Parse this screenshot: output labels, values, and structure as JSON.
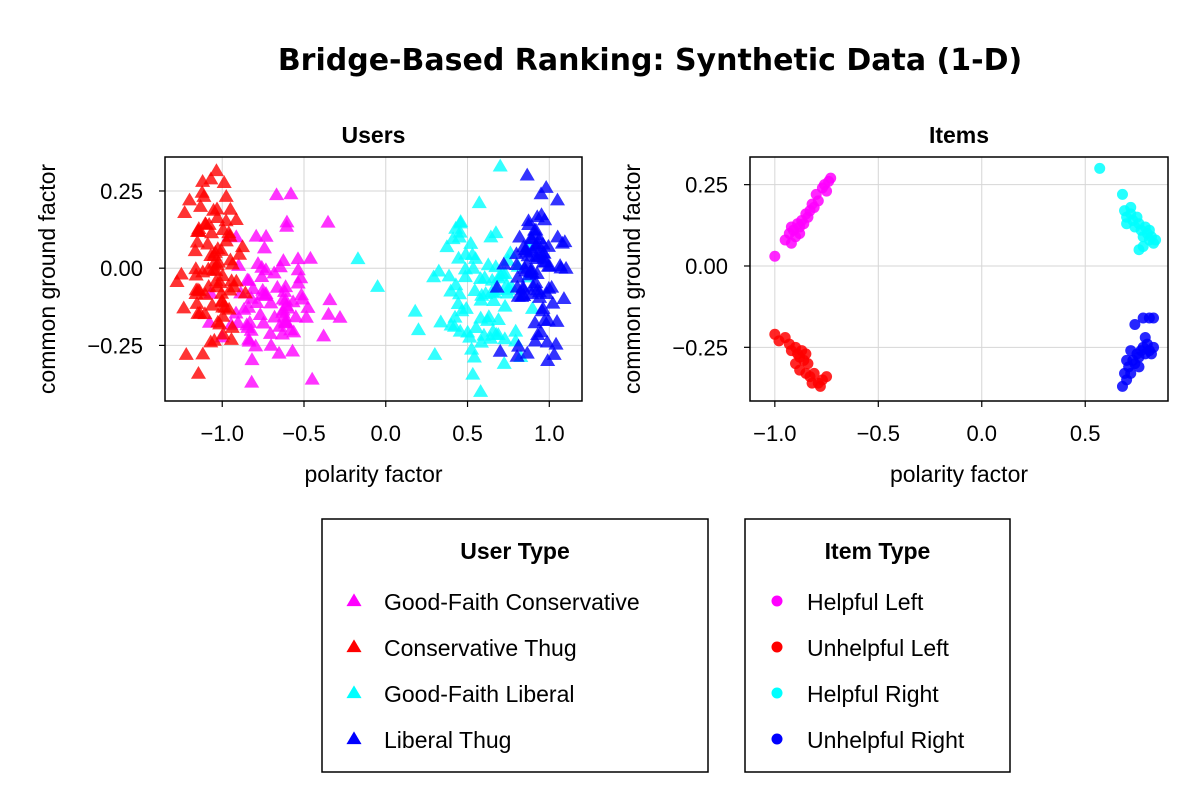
{
  "figure": {
    "title": "Bridge-Based Ranking: Synthetic Data (1-D)"
  },
  "chart_data": [
    {
      "type": "scatter",
      "title": "Users",
      "xlabel": "polarity factor",
      "ylabel": "common ground factor",
      "xlim": [
        -1.35,
        1.2
      ],
      "ylim": [
        -0.43,
        0.36
      ],
      "xticks": [
        -1.0,
        -0.5,
        0.0,
        0.5,
        1.0
      ],
      "xtick_labels": [
        "−1.0",
        "−0.5",
        "0.0",
        "0.5",
        "1.0"
      ],
      "yticks": [
        -0.25,
        0.0,
        0.25
      ],
      "ytick_labels": [
        "−0.25",
        "0.00",
        "0.25"
      ],
      "grid": true,
      "marker": "triangle",
      "series": [
        {
          "name": "Good-Faith Conservative",
          "color": "#ff00ff",
          "cluster": {
            "n": 80,
            "xmean": -0.7,
            "xsd": 0.15,
            "ymean": -0.09,
            "ysd": 0.12,
            "seed": 11
          },
          "points": [
            [
              -0.58,
              0.24
            ],
            [
              -0.45,
              -0.36
            ],
            [
              -0.82,
              -0.37
            ],
            [
              -0.28,
              -0.16
            ],
            [
              -0.35,
              -0.15
            ],
            [
              -0.38,
              -0.22
            ]
          ]
        },
        {
          "name": "Conservative Thug",
          "color": "#ff0000",
          "cluster": {
            "n": 85,
            "xmean": -1.06,
            "xsd": 0.08,
            "ymean": -0.01,
            "ysd": 0.13,
            "seed": 23
          },
          "points": [
            [
              -1.12,
              0.28
            ],
            [
              -1.2,
              0.22
            ],
            [
              -1.22,
              -0.28
            ],
            [
              -1.25,
              -0.02
            ],
            [
              -0.95,
              0.19
            ]
          ]
        },
        {
          "name": "Good-Faith Liberal",
          "color": "#00ffff",
          "cluster": {
            "n": 80,
            "xmean": 0.6,
            "xsd": 0.13,
            "ymean": -0.08,
            "ysd": 0.12,
            "seed": 37
          },
          "points": [
            [
              0.7,
              0.33
            ],
            [
              -0.17,
              0.03
            ],
            [
              -0.05,
              -0.06
            ],
            [
              0.2,
              -0.2
            ],
            [
              0.3,
              -0.28
            ],
            [
              0.58,
              -0.4
            ],
            [
              0.45,
              0.1
            ],
            [
              0.18,
              -0.14
            ]
          ]
        },
        {
          "name": "Liberal Thug",
          "color": "#0000ff",
          "cluster": {
            "n": 85,
            "xmean": 0.92,
            "xsd": 0.09,
            "ymean": 0.0,
            "ysd": 0.12,
            "seed": 53
          },
          "points": [
            [
              0.95,
              0.24
            ],
            [
              1.05,
              0.22
            ],
            [
              1.08,
              0.08
            ],
            [
              1.03,
              -0.28
            ],
            [
              0.99,
              -0.3
            ],
            [
              0.7,
              -0.27
            ]
          ]
        }
      ]
    },
    {
      "type": "scatter",
      "title": "Items",
      "xlabel": "polarity factor",
      "ylabel": "common ground factor",
      "xlim": [
        -1.12,
        0.9
      ],
      "ylim": [
        -0.415,
        0.335
      ],
      "xticks": [
        -1.0,
        -0.5,
        0.0,
        0.5
      ],
      "xtick_labels": [
        "−1.0",
        "−0.5",
        "0.0",
        "0.5"
      ],
      "yticks": [
        -0.25,
        0.0,
        0.25
      ],
      "ytick_labels": [
        "−0.25",
        "0.00",
        "0.25"
      ],
      "grid": true,
      "marker": "circle",
      "series": [
        {
          "name": "Helpful Left",
          "color": "#ff00ff",
          "points": [
            [
              -1.0,
              0.03
            ],
            [
              -0.95,
              0.08
            ],
            [
              -0.93,
              0.1
            ],
            [
              -0.92,
              0.12
            ],
            [
              -0.91,
              0.11
            ],
            [
              -0.9,
              0.09
            ],
            [
              -0.89,
              0.13
            ],
            [
              -0.88,
              0.12
            ],
            [
              -0.87,
              0.14
            ],
            [
              -0.86,
              0.13
            ],
            [
              -0.85,
              0.16
            ],
            [
              -0.84,
              0.15
            ],
            [
              -0.83,
              0.17
            ],
            [
              -0.82,
              0.19
            ],
            [
              -0.81,
              0.18
            ],
            [
              -0.8,
              0.22
            ],
            [
              -0.79,
              0.2
            ],
            [
              -0.77,
              0.24
            ],
            [
              -0.76,
              0.25
            ],
            [
              -0.74,
              0.26
            ],
            [
              -0.73,
              0.27
            ],
            [
              -0.75,
              0.23
            ],
            [
              -0.92,
              0.07
            ],
            [
              -0.88,
              0.1
            ]
          ]
        },
        {
          "name": "Unhelpful Left",
          "color": "#ff0000",
          "points": [
            [
              -1.0,
              -0.21
            ],
            [
              -0.98,
              -0.23
            ],
            [
              -0.95,
              -0.22
            ],
            [
              -0.93,
              -0.24
            ],
            [
              -0.92,
              -0.26
            ],
            [
              -0.9,
              -0.25
            ],
            [
              -0.89,
              -0.27
            ],
            [
              -0.88,
              -0.28
            ],
            [
              -0.87,
              -0.26
            ],
            [
              -0.86,
              -0.29
            ],
            [
              -0.85,
              -0.27
            ],
            [
              -0.84,
              -0.3
            ],
            [
              -0.88,
              -0.32
            ],
            [
              -0.85,
              -0.33
            ],
            [
              -0.83,
              -0.34
            ],
            [
              -0.81,
              -0.33
            ],
            [
              -0.79,
              -0.36
            ],
            [
              -0.77,
              -0.35
            ],
            [
              -0.75,
              -0.34
            ],
            [
              -0.78,
              -0.37
            ],
            [
              -0.82,
              -0.36
            ],
            [
              -0.9,
              -0.3
            ]
          ]
        },
        {
          "name": "Helpful Right",
          "color": "#00ffff",
          "points": [
            [
              0.57,
              0.3
            ],
            [
              0.68,
              0.22
            ],
            [
              0.69,
              0.17
            ],
            [
              0.7,
              0.15
            ],
            [
              0.72,
              0.16
            ],
            [
              0.73,
              0.14
            ],
            [
              0.74,
              0.12
            ],
            [
              0.75,
              0.15
            ],
            [
              0.76,
              0.13
            ],
            [
              0.77,
              0.11
            ],
            [
              0.78,
              0.09
            ],
            [
              0.79,
              0.12
            ],
            [
              0.8,
              0.1
            ],
            [
              0.81,
              0.08
            ],
            [
              0.82,
              0.09
            ],
            [
              0.83,
              0.07
            ],
            [
              0.84,
              0.08
            ],
            [
              0.76,
              0.05
            ],
            [
              0.72,
              0.18
            ],
            [
              0.7,
              0.13
            ],
            [
              0.78,
              0.06
            ],
            [
              0.81,
              0.11
            ]
          ]
        },
        {
          "name": "Unhelpful Right",
          "color": "#0000ff",
          "points": [
            [
              0.68,
              -0.37
            ],
            [
              0.69,
              -0.33
            ],
            [
              0.7,
              -0.35
            ],
            [
              0.71,
              -0.31
            ],
            [
              0.72,
              -0.33
            ],
            [
              0.73,
              -0.29
            ],
            [
              0.74,
              -0.3
            ],
            [
              0.75,
              -0.27
            ],
            [
              0.76,
              -0.28
            ],
            [
              0.77,
              -0.26
            ],
            [
              0.78,
              -0.25
            ],
            [
              0.79,
              -0.27
            ],
            [
              0.8,
              -0.24
            ],
            [
              0.81,
              -0.26
            ],
            [
              0.82,
              -0.27
            ],
            [
              0.83,
              -0.25
            ],
            [
              0.74,
              -0.18
            ],
            [
              0.78,
              -0.16
            ],
            [
              0.81,
              -0.16
            ],
            [
              0.83,
              -0.16
            ],
            [
              0.72,
              -0.26
            ],
            [
              0.76,
              -0.31
            ],
            [
              0.7,
              -0.29
            ],
            [
              0.79,
              -0.22
            ]
          ]
        }
      ]
    }
  ],
  "legends": [
    {
      "title": "User Type",
      "marker": "triangle",
      "entries": [
        {
          "label": "Good-Faith Conservative",
          "color": "#ff00ff"
        },
        {
          "label": "Conservative Thug",
          "color": "#ff0000"
        },
        {
          "label": "Good-Faith Liberal",
          "color": "#00ffff"
        },
        {
          "label": "Liberal Thug",
          "color": "#0000ff"
        }
      ]
    },
    {
      "title": "Item Type",
      "marker": "circle",
      "entries": [
        {
          "label": "Helpful Left",
          "color": "#ff00ff"
        },
        {
          "label": "Unhelpful Left",
          "color": "#ff0000"
        },
        {
          "label": "Helpful Right",
          "color": "#00ffff"
        },
        {
          "label": "Unhelpful Right",
          "color": "#0000ff"
        }
      ]
    }
  ]
}
